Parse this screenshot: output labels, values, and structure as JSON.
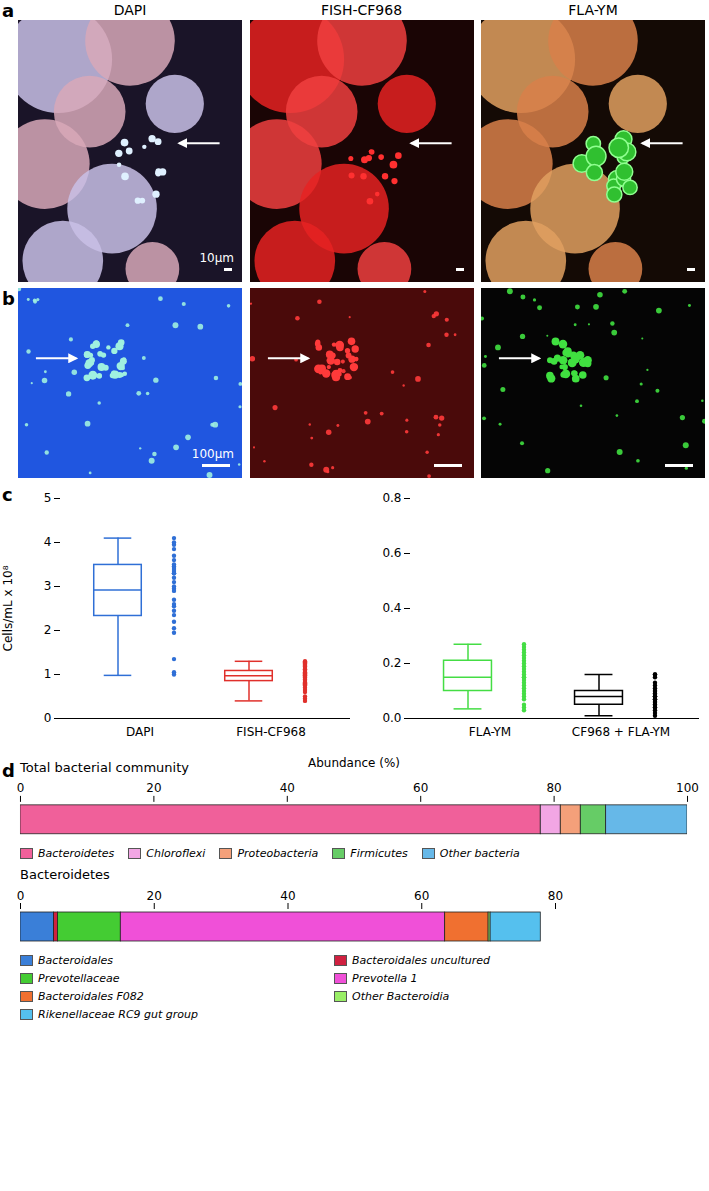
{
  "panel_labels": [
    "a",
    "b",
    "c",
    "d"
  ],
  "images": {
    "a": {
      "channels": [
        "DAPI",
        "FISH-CF968",
        "FLA-YM"
      ],
      "scale_bar": "10μm"
    },
    "b": {
      "scale_bar": "100μm"
    }
  },
  "chart_data": [
    {
      "type": "box",
      "ylabel": "Cells/mL x 10⁸",
      "ylim": [
        0,
        5
      ],
      "yticks": [
        0,
        1,
        2,
        3,
        4,
        5
      ],
      "series": [
        {
          "name": "DAPI",
          "color": "#2f6fd6",
          "min": 0.98,
          "q1": 2.33,
          "median": 2.92,
          "q3": 3.49,
          "max": 4.1,
          "values": [
            4.1,
            4.0,
            3.95,
            3.85,
            3.7,
            3.6,
            3.5,
            3.45,
            3.45,
            3.4,
            3.35,
            3.3,
            3.3,
            3.2,
            3.1,
            3.0,
            2.95,
            2.9,
            2.7,
            2.6,
            2.55,
            2.45,
            2.35,
            2.2,
            2.05,
            1.95,
            1.35,
            1.05,
            1.0
          ]
        },
        {
          "name": "FISH-CF968",
          "color": "#e0302b",
          "min": 0.4,
          "q1": 0.85,
          "median": 0.97,
          "q3": 1.08,
          "max": 1.3,
          "values": [
            1.3,
            1.28,
            1.25,
            1.22,
            1.2,
            1.18,
            1.15,
            1.12,
            1.1,
            1.08,
            1.05,
            1.03,
            1.0,
            0.98,
            0.97,
            0.95,
            0.93,
            0.9,
            0.88,
            0.85,
            0.82,
            0.8,
            0.78,
            0.75,
            0.7,
            0.65,
            0.6,
            0.5,
            0.45,
            0.4
          ]
        }
      ]
    },
    {
      "type": "box",
      "ylim": [
        0,
        0.8
      ],
      "yticks": [
        {
          "value": 0,
          "label": "0.0"
        },
        0.2,
        0.4,
        0.6,
        0.8
      ],
      "series": [
        {
          "name": "FLA-YM",
          "color": "#44dd44",
          "min": 0.035,
          "q1": 0.1,
          "median": 0.15,
          "q3": 0.21,
          "max": 0.27,
          "values": [
            0.27,
            0.26,
            0.25,
            0.24,
            0.23,
            0.22,
            0.21,
            0.2,
            0.19,
            0.18,
            0.17,
            0.16,
            0.15,
            0.15,
            0.14,
            0.13,
            0.12,
            0.11,
            0.1,
            0.09,
            0.08,
            0.07,
            0.05,
            0.04,
            0.03
          ]
        },
        {
          "name": "CF968 + FLA-YM",
          "color": "#000000",
          "min": 0.01,
          "q1": 0.05,
          "median": 0.08,
          "q3": 0.1,
          "max": 0.16,
          "values": [
            0.16,
            0.16,
            0.15,
            0.13,
            0.12,
            0.11,
            0.1,
            0.1,
            0.09,
            0.09,
            0.08,
            0.08,
            0.08,
            0.07,
            0.07,
            0.06,
            0.06,
            0.05,
            0.05,
            0.04,
            0.04,
            0.03,
            0.02,
            0.01
          ]
        }
      ]
    },
    {
      "type": "bar",
      "orientation": "horizontal",
      "stacked": true,
      "legend": "bottom",
      "title": "Total bacterial community",
      "xlabel": "Abundance (%)",
      "xlim": [
        0,
        100
      ],
      "xticks": [
        0,
        20,
        40,
        60,
        80,
        100
      ],
      "categories": [
        null
      ],
      "series": [
        {
          "name": "Bacteroidetes",
          "color": "#f0609a",
          "values": [
            78
          ]
        },
        {
          "name": "Chloroflexi",
          "color": "#f2a6e4",
          "values": [
            3
          ]
        },
        {
          "name": "Proteobacteria",
          "color": "#f4a07a",
          "values": [
            3
          ]
        },
        {
          "name": "Firmicutes",
          "color": "#66cc66",
          "values": [
            3.8
          ]
        },
        {
          "name": "Other bacteria",
          "color": "#66b8e8",
          "values": [
            12.2
          ]
        }
      ]
    },
    {
      "type": "bar",
      "orientation": "horizontal",
      "stacked": true,
      "legend": "bottom",
      "title": "Bacteroidetes",
      "xlim": [
        0,
        80
      ],
      "xticks": [
        0,
        20,
        40,
        60,
        80
      ],
      "categories": [
        null
      ],
      "series": [
        {
          "name": "Bacteroidales",
          "color": "#3a7fd8",
          "values": [
            5
          ]
        },
        {
          "name": "Bacteroidales uncultured",
          "color": "#d02040",
          "values": [
            0.6
          ]
        },
        {
          "name": "Prevotellaceae",
          "color": "#44cc33",
          "values": [
            9.4
          ]
        },
        {
          "name": "Prevotella 1",
          "color": "#f050d8",
          "values": [
            48.5
          ]
        },
        {
          "name": "Bacteroidales F082",
          "color": "#f07030",
          "values": [
            6.5
          ]
        },
        {
          "name": "Other Bacteroidia",
          "color": "#99ee66",
          "values": [
            0.3
          ]
        },
        {
          "name": "Rikenellaceae RC9 gut group",
          "color": "#55c0ee",
          "values": [
            7.5
          ]
        }
      ]
    }
  ]
}
